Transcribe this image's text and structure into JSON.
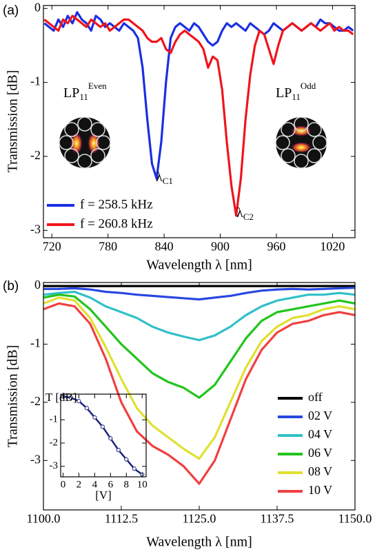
{
  "chart_data": [
    {
      "type": "line",
      "panel": "(a)",
      "xlabel": "Wavelength λ [nm]",
      "ylabel": "Transmission [dB]",
      "xlim": [
        711,
        1044
      ],
      "ylim": [
        -3.1,
        0.04
      ],
      "xticks": [
        720,
        780,
        840,
        900,
        960,
        1020
      ],
      "yticks": [
        0,
        -1,
        -2,
        -3
      ],
      "legend": "lower left",
      "mode_labels": [
        {
          "base": "LP",
          "sub": "11",
          "sup": "Even"
        },
        {
          "base": "LP",
          "sub": "11",
          "sup": "Odd"
        }
      ],
      "annotations": [
        {
          "text": "λ",
          "sub": "C1"
        },
        {
          "text": "λ",
          "sub": "C2"
        }
      ],
      "x": [
        712,
        717,
        722,
        727,
        732,
        737,
        742,
        747,
        752,
        757,
        762,
        767,
        772,
        777,
        782,
        787,
        792,
        797,
        802,
        807,
        812,
        817,
        822,
        827,
        832,
        837,
        842,
        847,
        852,
        857,
        862,
        867,
        872,
        877,
        882,
        887,
        892,
        897,
        902,
        907,
        912,
        917,
        922,
        927,
        932,
        937,
        942,
        947,
        952,
        957,
        962,
        967,
        972,
        977,
        982,
        987,
        992,
        997,
        1002,
        1007,
        1012,
        1017,
        1022,
        1027,
        1032,
        1037,
        1042
      ],
      "series": [
        {
          "name": "f = 258.5 kHz",
          "color": "#1a2fe0",
          "values": [
            -0.2,
            -0.25,
            -0.3,
            -0.15,
            -0.25,
            -0.1,
            -0.2,
            -0.05,
            -0.15,
            -0.2,
            -0.3,
            -0.1,
            -0.15,
            -0.25,
            -0.2,
            -0.25,
            -0.3,
            -0.2,
            -0.25,
            -0.3,
            -0.4,
            -0.8,
            -1.5,
            -2.1,
            -2.3,
            -1.8,
            -1.0,
            -0.4,
            -0.25,
            -0.2,
            -0.25,
            -0.3,
            -0.2,
            -0.25,
            -0.35,
            -0.45,
            -0.5,
            -0.45,
            -0.3,
            -0.2,
            -0.25,
            -0.2,
            -0.25,
            -0.3,
            -0.2,
            -0.25,
            -0.3,
            -0.35,
            -0.3,
            -0.2,
            -0.25,
            -0.3,
            -0.25,
            -0.2,
            -0.25,
            -0.3,
            -0.25,
            -0.2,
            -0.25,
            -0.15,
            -0.2,
            -0.2,
            -0.25,
            -0.3,
            -0.3,
            -0.25,
            -0.3
          ]
        },
        {
          "name": "f = 260.8 kHz",
          "color": "#f0141c",
          "values": [
            -0.15,
            -0.2,
            -0.25,
            -0.3,
            -0.15,
            -0.2,
            -0.1,
            -0.15,
            -0.2,
            -0.25,
            -0.15,
            -0.2,
            -0.25,
            -0.2,
            -0.3,
            -0.25,
            -0.2,
            -0.15,
            -0.15,
            -0.2,
            -0.25,
            -0.3,
            -0.4,
            -0.45,
            -0.45,
            -0.4,
            -0.55,
            -0.6,
            -0.45,
            -0.35,
            -0.3,
            -0.35,
            -0.4,
            -0.45,
            -0.55,
            -0.8,
            -0.65,
            -0.7,
            -1.1,
            -1.8,
            -2.4,
            -2.8,
            -2.3,
            -1.5,
            -0.9,
            -0.5,
            -0.3,
            -0.35,
            -0.55,
            -0.75,
            -0.5,
            -0.3,
            -0.25,
            -0.2,
            -0.25,
            -0.3,
            -0.25,
            -0.2,
            -0.25,
            -0.3,
            -0.25,
            -0.2,
            -0.3,
            -0.25,
            -0.3,
            -0.3,
            -0.35
          ]
        }
      ]
    },
    {
      "type": "line",
      "panel": "(b)",
      "xlabel": "Wavelength λ [nm]",
      "ylabel": "Transmission [dB]",
      "xlim": [
        1100,
        1150
      ],
      "ylim": [
        -3.85,
        0.06
      ],
      "xticks": [
        {
          "value": 1100,
          "label": "1100.0"
        },
        1112.5,
        {
          "value": 1125,
          "label": "1125.0"
        },
        1137.5,
        {
          "value": 1150,
          "label": "1150.0"
        }
      ],
      "yticks": [
        0,
        -1,
        -2,
        -3
      ],
      "legend": "lower right",
      "x": [
        1100,
        1102.5,
        1105,
        1107.5,
        1110,
        1112.5,
        1115,
        1117.5,
        1120,
        1122.5,
        1125,
        1127.5,
        1130,
        1132.5,
        1135,
        1137.5,
        1140,
        1142.5,
        1145,
        1147.5,
        1150
      ],
      "series": [
        {
          "name": "off",
          "color": "#000000",
          "values": [
            0,
            0,
            0,
            0,
            0,
            0,
            0,
            0,
            0,
            0,
            0,
            0,
            0,
            0,
            0,
            0,
            0,
            0,
            0,
            0,
            0
          ]
        },
        {
          "name": "02 V",
          "color": "#2848e0",
          "values": [
            -0.05,
            -0.05,
            -0.04,
            -0.06,
            -0.1,
            -0.12,
            -0.15,
            -0.17,
            -0.19,
            -0.21,
            -0.23,
            -0.2,
            -0.17,
            -0.12,
            -0.08,
            -0.06,
            -0.05,
            -0.06,
            -0.05,
            -0.04,
            -0.03
          ]
        },
        {
          "name": "04 V",
          "color": "#30c0c8",
          "values": [
            -0.15,
            -0.12,
            -0.1,
            -0.2,
            -0.35,
            -0.45,
            -0.55,
            -0.7,
            -0.8,
            -0.87,
            -0.93,
            -0.85,
            -0.7,
            -0.5,
            -0.35,
            -0.25,
            -0.2,
            -0.15,
            -0.15,
            -0.12,
            -0.15
          ]
        },
        {
          "name": "06 V",
          "color": "#22c41c",
          "values": [
            -0.2,
            -0.15,
            -0.18,
            -0.4,
            -0.7,
            -1.0,
            -1.25,
            -1.5,
            -1.65,
            -1.75,
            -1.92,
            -1.7,
            -1.3,
            -0.9,
            -0.6,
            -0.45,
            -0.4,
            -0.35,
            -0.3,
            -0.25,
            -0.3
          ]
        },
        {
          "name": "08 V",
          "color": "#e0e030",
          "values": [
            -0.3,
            -0.2,
            -0.25,
            -0.55,
            -1.05,
            -1.6,
            -2.1,
            -2.4,
            -2.6,
            -2.8,
            -2.97,
            -2.6,
            -2.0,
            -1.4,
            -0.95,
            -0.7,
            -0.55,
            -0.5,
            -0.4,
            -0.35,
            -0.4
          ]
        },
        {
          "name": "10 V",
          "color": "#f04040",
          "values": [
            -0.4,
            -0.3,
            -0.35,
            -0.65,
            -1.25,
            -2.0,
            -2.5,
            -2.75,
            -2.9,
            -3.1,
            -3.4,
            -3.0,
            -2.3,
            -1.6,
            -1.1,
            -0.8,
            -0.65,
            -0.6,
            -0.5,
            -0.45,
            -0.5
          ]
        }
      ]
    },
    {
      "type": "line",
      "xlabel": "[V]",
      "ylabel": "T [dB]",
      "markers": true,
      "xlim": [
        -0.3,
        10.5
      ],
      "ylim": [
        -3.45,
        0.1
      ],
      "xticks": [
        0,
        2,
        4,
        6,
        8,
        10
      ],
      "yticks": [
        -1,
        -2,
        -3
      ],
      "x": [
        0,
        1,
        2,
        3,
        4,
        5,
        6,
        7,
        8,
        9,
        10
      ],
      "series": [
        {
          "color": "#1a237e",
          "values": [
            0,
            -0.05,
            -0.2,
            -0.5,
            -0.9,
            -1.3,
            -1.8,
            -2.3,
            -2.7,
            -3.1,
            -3.35
          ]
        }
      ]
    }
  ]
}
